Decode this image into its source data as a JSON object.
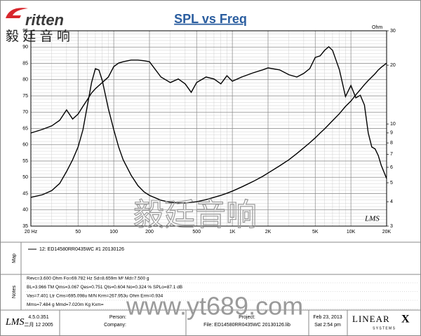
{
  "header": {
    "logo": "ritten",
    "logo_cn": "毅 廷 音 响"
  },
  "chart_data": {
    "type": "line",
    "title": "SPL vs Freq",
    "x": [
      20,
      25,
      30,
      35,
      40,
      45,
      50,
      55,
      60,
      65,
      70,
      75,
      80,
      90,
      100,
      110,
      120,
      140,
      160,
      180,
      200,
      250,
      300,
      350,
      400,
      450,
      500,
      600,
      700,
      800,
      900,
      1000,
      1200,
      1500,
      1800,
      2000,
      2500,
      3000,
      3500,
      4000,
      4500,
      5000,
      5500,
      6000,
      6500,
      7000,
      8000,
      9000,
      10000,
      11000,
      12000,
      13000,
      14000,
      15000,
      16000,
      17000,
      18000,
      20000
    ],
    "xlim": [
      20,
      20000
    ],
    "xscale": "log",
    "xticks": [
      {
        "value": 20,
        "label": "20 Hz"
      },
      50,
      100,
      200,
      500,
      {
        "value": 1000,
        "label": "1K"
      },
      {
        "value": 2000,
        "label": "2K"
      },
      {
        "value": 5000,
        "label": "5K"
      },
      {
        "value": 10000,
        "label": "10K"
      },
      {
        "value": 20000,
        "label": "20K"
      }
    ],
    "ylim": [
      35,
      95
    ],
    "yticks": [
      35,
      40,
      45,
      50,
      55,
      60,
      65,
      70,
      75,
      80,
      85,
      90,
      95
    ],
    "y2lim": [
      3,
      30
    ],
    "y2scale": "log",
    "y2ticks": [
      3,
      4,
      5,
      6,
      7,
      8,
      9,
      10,
      20,
      30
    ],
    "y2_label": "Ohm",
    "grid": true,
    "minor_grid": true,
    "annotation": "LMS",
    "series": [
      {
        "name": "12: ED14580RR0435WC #1 20130126",
        "color": "#000000",
        "values": [
          63.6,
          64.7,
          65.8,
          67.5,
          70.7,
          67.9,
          69.4,
          71.8,
          73.9,
          75.9,
          77.2,
          78.2,
          79.1,
          80.8,
          84.0,
          85.1,
          85.5,
          86.0,
          86.0,
          85.8,
          85.5,
          80.8,
          79.1,
          80.2,
          78.7,
          76.1,
          79.1,
          80.8,
          80.2,
          78.7,
          81.2,
          79.5,
          80.8,
          82.1,
          83.0,
          83.6,
          83.0,
          81.5,
          80.8,
          81.9,
          83.4,
          86.8,
          87.3,
          89.0,
          90.1,
          89.0,
          83.0,
          74.8,
          78.2,
          74.4,
          75.2,
          72.2,
          63.6,
          59.3,
          58.7,
          56.7,
          53.7,
          49.6
        ]
      },
      {
        "color": "#000000",
        "axis": "y2",
        "values": [
          4.21,
          4.34,
          4.56,
          4.96,
          5.71,
          6.56,
          7.62,
          9.35,
          12.5,
          16.3,
          19.2,
          18.9,
          16.7,
          12.0,
          9.35,
          7.62,
          6.56,
          5.47,
          4.83,
          4.49,
          4.31,
          4.07,
          3.97,
          3.94,
          3.94,
          3.97,
          4.0,
          4.1,
          4.21,
          4.31,
          4.42,
          4.53,
          4.76,
          5.08,
          5.39,
          5.61,
          6.1,
          6.56,
          7.06,
          7.55,
          8.02,
          8.49,
          8.99,
          9.44,
          9.93,
          10.4,
          11.3,
          12.3,
          13.1,
          14.1,
          15.0,
          15.9,
          16.7,
          17.4,
          18.1,
          18.9,
          19.5,
          20.5
        ]
      }
    ]
  },
  "panels": {
    "map_label": "Map",
    "notes_label": "Notes",
    "notes": [
      "Revc=3.600 Ohm  Fo=69.782 Hz  Sd=8.659m M²  Md=7.500 g",
      "BL=3.966 TM  Qms=3.067  Qes=0.751  Qts=0.604  No=0.324 %  SPLo=87.1 dB",
      "Vas=7.401 Ltr  Cms=695.098u M/N  Krm=267.953u Ohm  Erm=0.934",
      "Mms=7.484 g  Mmd=7.020m Kg  Kxm="
    ]
  },
  "footer": {
    "software": "LMS",
    "version": "4.5.0.351",
    "build_date": "二月 12 2005",
    "person": "Person:",
    "company": "Company:",
    "project": "Project:",
    "file": "File: ED14580RR0435WC 20130126.lib",
    "date": "Feb 23, 2013",
    "time": "Sat 2:54 pm",
    "brand": "LINEAR",
    "brand_x": "X",
    "brand_sub": "S Y S T E M S"
  },
  "watermark": {
    "cn": "毅廷音响",
    "url": "www.yt689.com"
  }
}
